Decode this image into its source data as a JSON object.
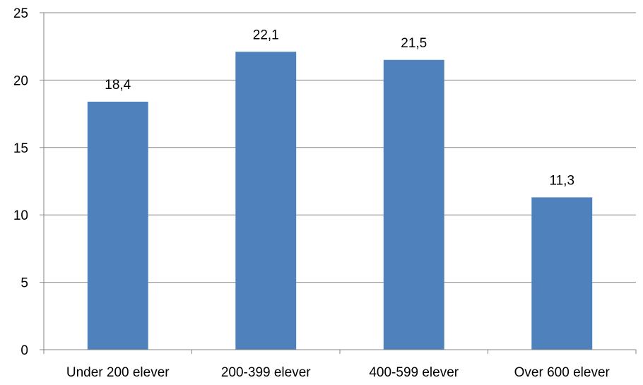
{
  "chart_data": {
    "type": "bar",
    "categories": [
      "Under 200 elever",
      "200-399 elever",
      "400-599 elever",
      "Over 600 elever"
    ],
    "values": [
      18.4,
      22.1,
      21.5,
      11.3
    ],
    "data_labels": [
      "18,4",
      "22,1",
      "21,5",
      "11,3"
    ],
    "ylim": [
      0,
      25
    ],
    "yticks": [
      0,
      5,
      10,
      15,
      20,
      25
    ],
    "title": "",
    "xlabel": "",
    "ylabel": "",
    "grid": true,
    "legend": "none",
    "colors": {
      "bar": "#4F81BD",
      "grid": "#868686",
      "axis": "#868686"
    }
  }
}
